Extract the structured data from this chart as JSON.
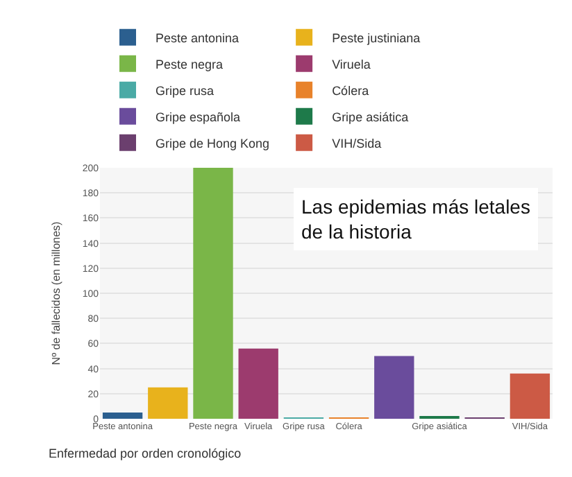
{
  "chart_data": {
    "type": "bar",
    "title": "Las epidemias más letales de la historia",
    "xlabel": "Enfermedad por orden cronológico",
    "ylabel": "Nº de fallecidos (en millones)",
    "categories": [
      "Peste antonina",
      null,
      "Peste negra",
      "Viruela",
      "Gripe rusa",
      "Cólera",
      null,
      "Gripe asiática",
      null,
      "VIH/Sida"
    ],
    "series": [
      {
        "name": "Peste antonina",
        "color": "#2b5f8f",
        "values": [
          5,
          null,
          null,
          null,
          null,
          null,
          null,
          null,
          null,
          null
        ]
      },
      {
        "name": "Peste justiniana",
        "color": "#e8b21c",
        "values": [
          null,
          25,
          null,
          null,
          null,
          null,
          null,
          null,
          null,
          null
        ]
      },
      {
        "name": "Peste negra",
        "color": "#7ab648",
        "values": [
          null,
          null,
          200,
          null,
          null,
          null,
          null,
          null,
          null,
          null
        ]
      },
      {
        "name": "Viruela",
        "color": "#9c3b6e",
        "values": [
          null,
          null,
          null,
          56,
          null,
          null,
          null,
          null,
          null,
          null
        ]
      },
      {
        "name": "Gripe rusa",
        "color": "#4aaaa5",
        "values": [
          null,
          null,
          null,
          null,
          1,
          null,
          null,
          null,
          null,
          null
        ]
      },
      {
        "name": "Cólera",
        "color": "#e8822a",
        "values": [
          null,
          null,
          null,
          null,
          null,
          1,
          null,
          null,
          null,
          null
        ]
      },
      {
        "name": "Gripe española",
        "color": "#6a4c9c",
        "values": [
          null,
          null,
          null,
          null,
          null,
          null,
          50,
          null,
          null,
          null
        ]
      },
      {
        "name": "Gripe asiática",
        "color": "#1e7a4a",
        "values": [
          null,
          null,
          null,
          null,
          null,
          null,
          null,
          2,
          null,
          null
        ]
      },
      {
        "name": "Gripe de Hong Kong",
        "color": "#6b3f6e",
        "values": [
          null,
          null,
          null,
          null,
          null,
          null,
          null,
          null,
          1,
          null
        ]
      },
      {
        "name": "VIH/Sida",
        "color": "#cc5a45",
        "values": [
          null,
          null,
          null,
          null,
          null,
          null,
          null,
          null,
          null,
          36
        ]
      }
    ],
    "ylim": [
      0,
      200
    ],
    "yticks": [
      0,
      20,
      40,
      60,
      80,
      100,
      120,
      140,
      160,
      180,
      200
    ],
    "grid": "y",
    "legend": "top"
  }
}
